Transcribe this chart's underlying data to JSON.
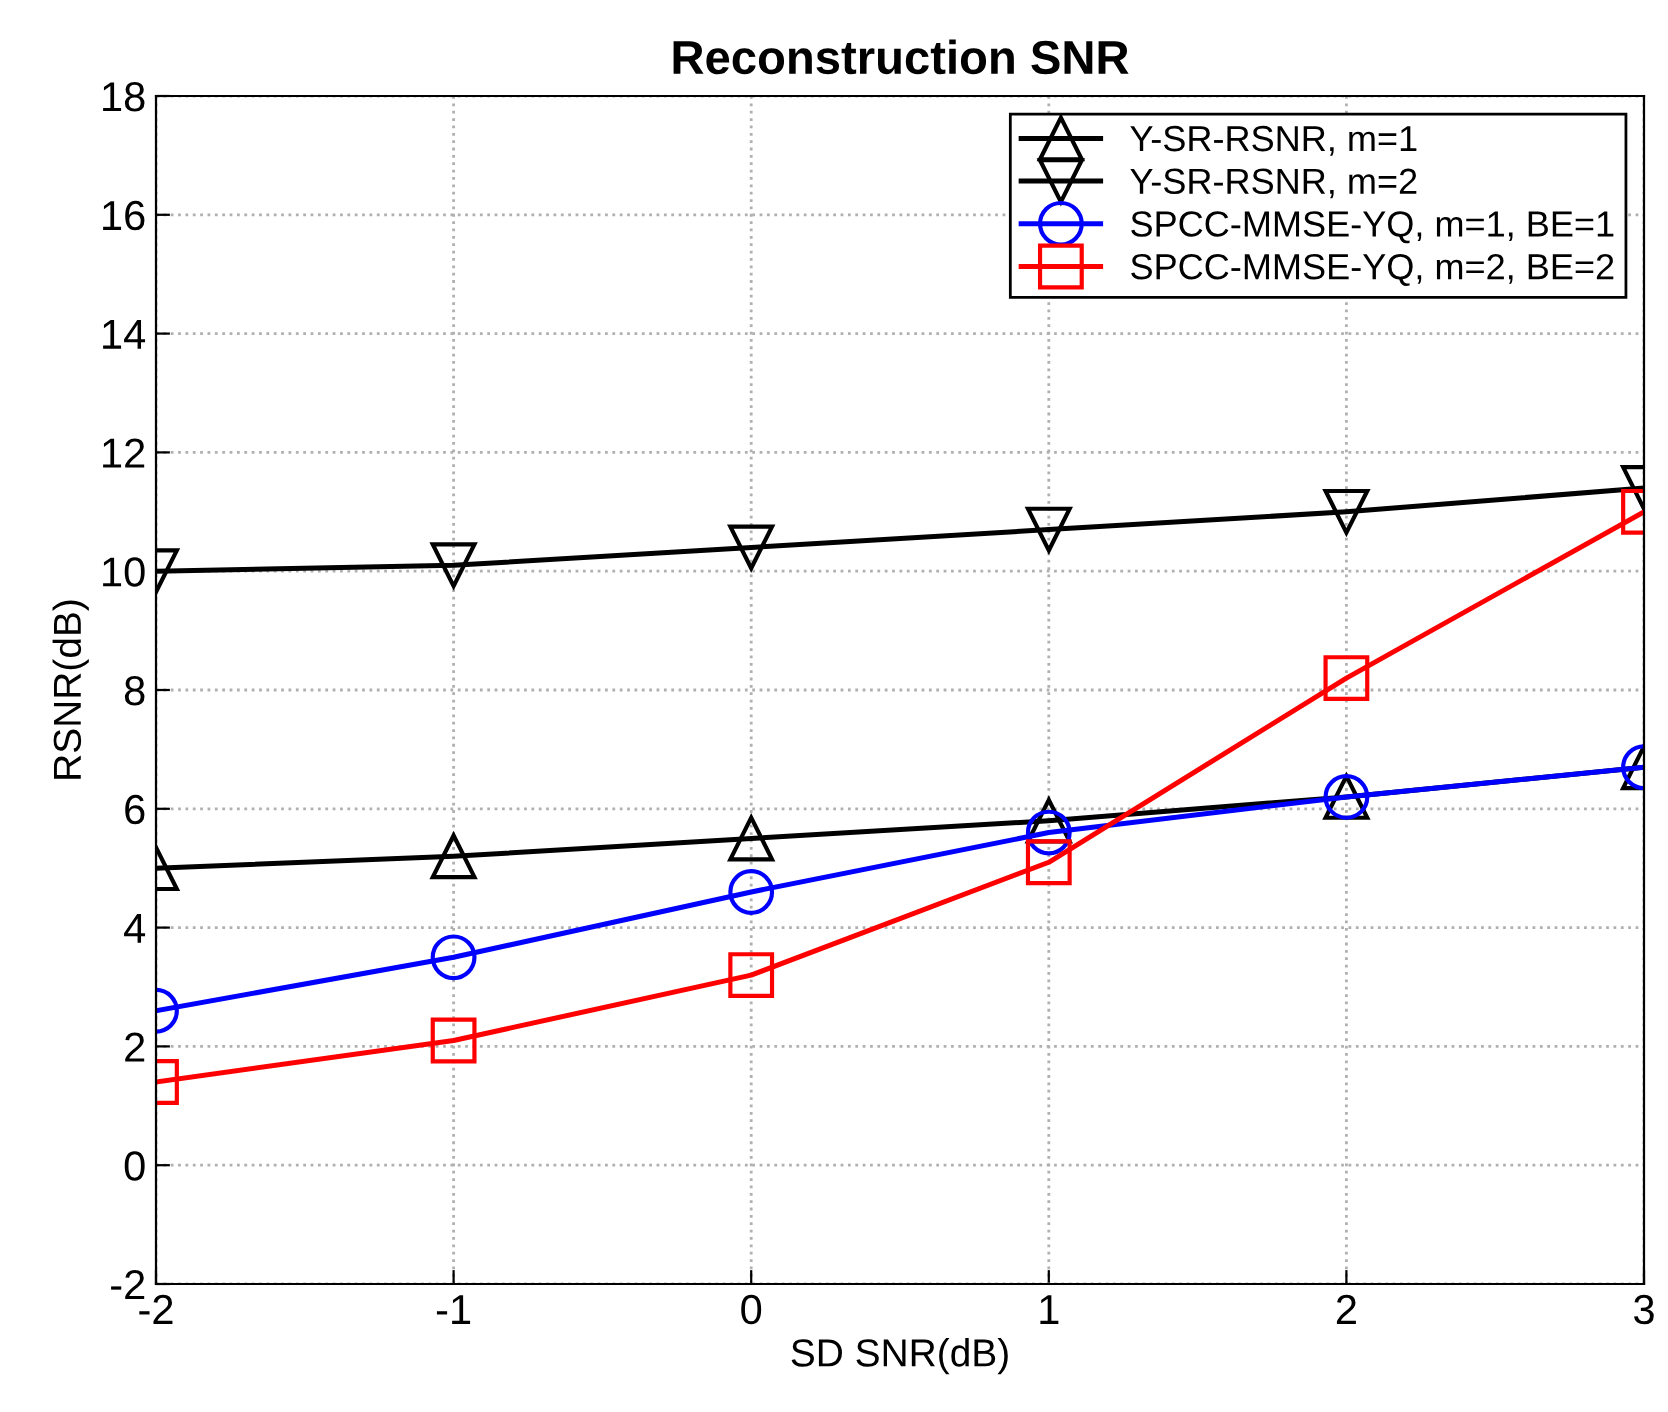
{
  "chart_data": {
    "type": "line",
    "title": "Reconstruction SNR",
    "xlabel": "SD SNR(dB)",
    "ylabel": "RSNR(dB)",
    "x": [
      -2,
      -1,
      0,
      1,
      2,
      3
    ],
    "series": [
      {
        "name": "Y-SR-RSNR, m=1",
        "color": "#000000",
        "marker": "triangle",
        "values": [
          5.0,
          5.2,
          5.5,
          5.8,
          6.2,
          6.7
        ]
      },
      {
        "name": "Y-SR-RSNR, m=2",
        "color": "#000000",
        "marker": "triangle_down",
        "values": [
          10.0,
          10.1,
          10.4,
          10.7,
          11.0,
          11.4
        ]
      },
      {
        "name": "SPCC-MMSE-YQ, m=1, BE=1",
        "color": "#0000ff",
        "marker": "circle",
        "values": [
          2.6,
          3.5,
          4.6,
          5.6,
          6.2,
          6.7
        ]
      },
      {
        "name": "SPCC-MMSE-YQ, m=2, BE=2",
        "color": "#ff0000",
        "marker": "square",
        "values": [
          1.4,
          2.1,
          3.2,
          5.1,
          8.2,
          11.0
        ]
      }
    ],
    "xlim": [
      -2,
      3
    ],
    "xticks": [
      -2,
      -1,
      0,
      1,
      2,
      3
    ],
    "ylim": [
      -2,
      18
    ],
    "yticks": [
      -2,
      0,
      2,
      4,
      6,
      8,
      10,
      12,
      14,
      16,
      18
    ],
    "grid": true,
    "legend": "top right",
    "line_style": "solid"
  }
}
